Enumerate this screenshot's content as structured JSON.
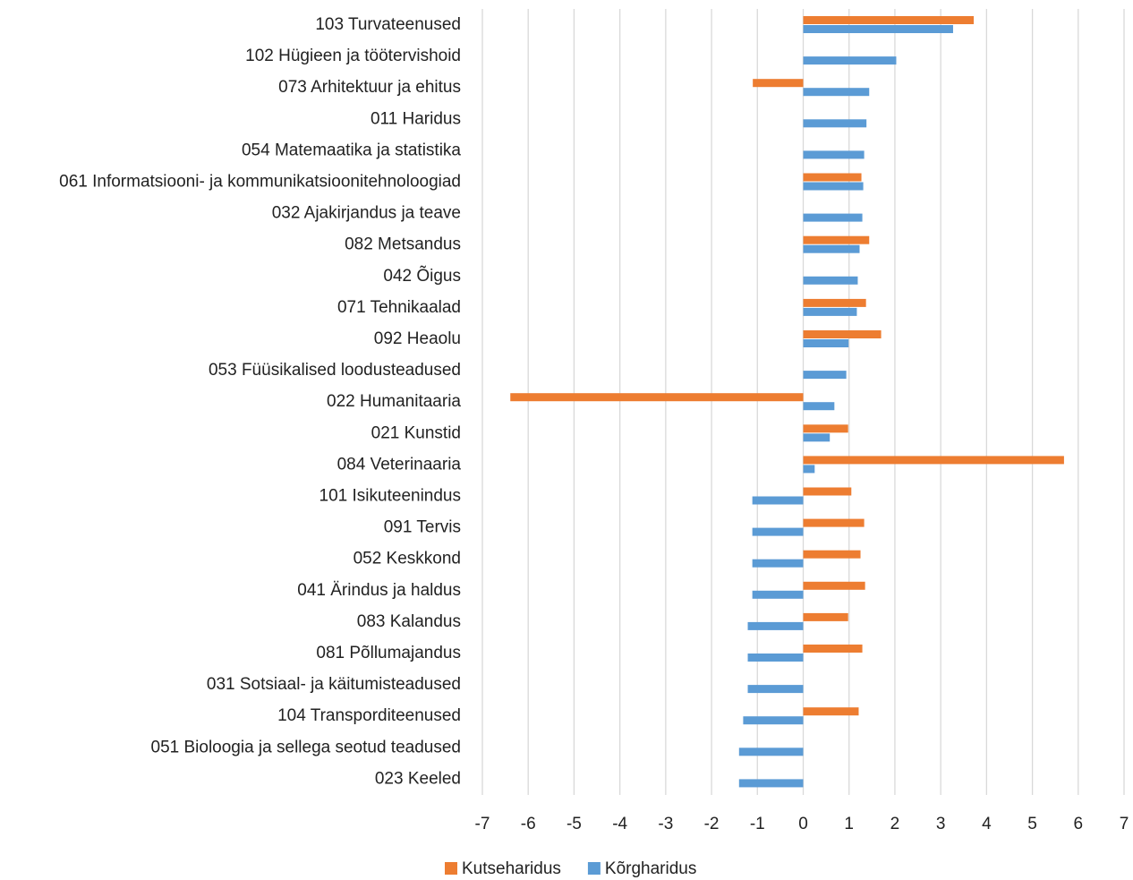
{
  "chart_data": {
    "type": "barh",
    "categories": [
      "103 Turvateenused",
      "102 Hügieen ja töötervishoid",
      "073 Arhitektuur ja ehitus",
      "011 Haridus",
      "054 Matemaatika ja statistika",
      "061 Informatsiooni- ja kommunikatsioonitehnoloogiad",
      "032 Ajakirjandus ja teave",
      "082 Metsandus",
      "042 Õigus",
      "071 Tehnikaalad",
      "092 Heaolu",
      "053 Füüsikalised loodusteadused",
      "022 Humanitaaria",
      "021 Kunstid",
      "084 Veterinaaria",
      "101 Isikuteenindus",
      "091 Tervis",
      "052 Keskkond",
      "041 Ärindus ja haldus",
      "083 Kalandus",
      "081 Põllumajandus",
      "031 Sotsiaal- ja käitumisteadused",
      "104 Transporditeenused",
      "051 Bioloogia ja sellega seotud teadused",
      "023 Keeled"
    ],
    "series": [
      {
        "name": "Kutseharidus",
        "color": "#ed7d31",
        "values": [
          3.72,
          null,
          -1.1,
          null,
          null,
          1.27,
          null,
          1.44,
          null,
          1.37,
          1.7,
          null,
          -6.39,
          0.98,
          5.69,
          1.05,
          1.33,
          1.25,
          1.35,
          0.98,
          1.29,
          null,
          1.21,
          null,
          null
        ]
      },
      {
        "name": "Kõrgharidus",
        "color": "#5b9bd5",
        "values": [
          3.27,
          2.03,
          1.44,
          1.38,
          1.33,
          1.31,
          1.29,
          1.23,
          1.19,
          1.17,
          0.99,
          0.94,
          0.68,
          0.58,
          0.25,
          -1.11,
          -1.11,
          -1.11,
          -1.11,
          -1.21,
          -1.21,
          -1.21,
          -1.31,
          -1.4,
          -1.4
        ]
      }
    ],
    "xlim": [
      -7,
      7
    ],
    "xticks": [
      -7,
      -6,
      -5,
      -4,
      -3,
      -2,
      -1,
      0,
      1,
      2,
      3,
      4,
      5,
      6,
      7
    ],
    "grid": true,
    "legend": "bottom"
  }
}
